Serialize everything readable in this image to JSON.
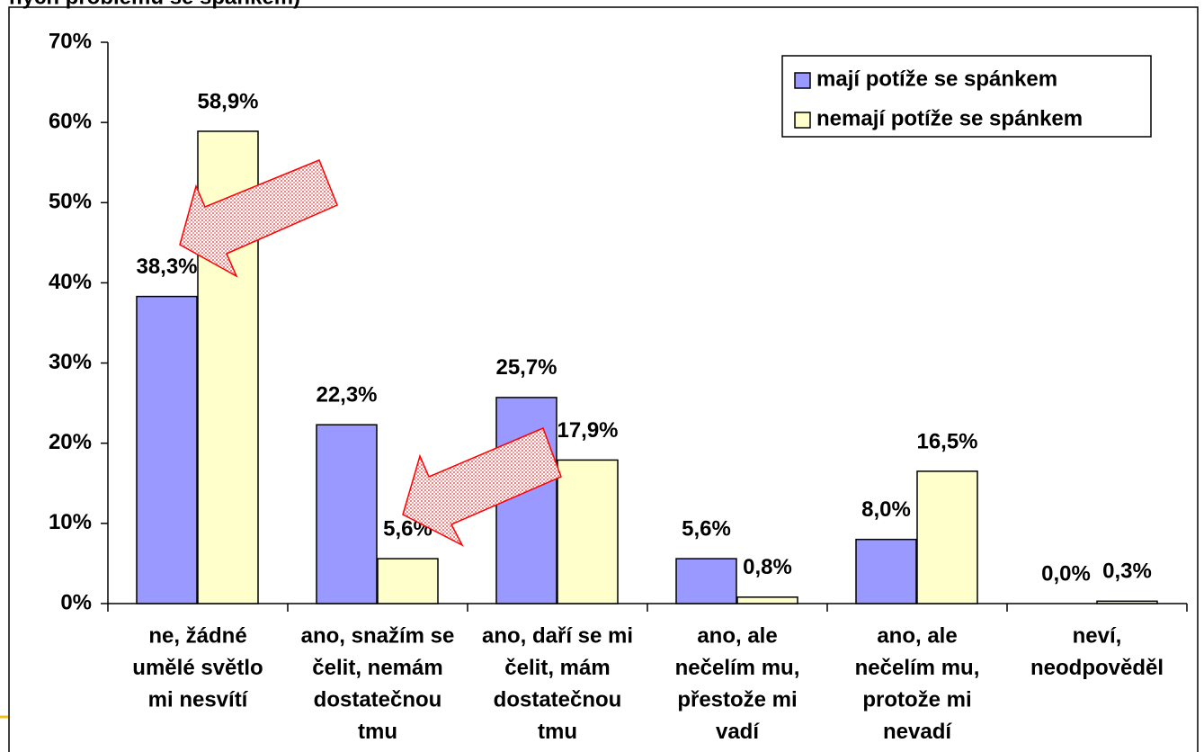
{
  "chart_data": {
    "type": "bar",
    "title": "ných problému se spánkem)",
    "categories": [
      [
        "ne, žádné",
        "umělé světlo",
        "mi nesvítí"
      ],
      [
        "ano, snažím se",
        "čelit, nemám",
        "dostatečnou",
        "tmu"
      ],
      [
        "ano, daří se mi",
        "čelit, mám",
        "dostatečnou",
        "tmu"
      ],
      [
        "ano, ale",
        "nečelím mu,",
        "přestože mi",
        "vadí"
      ],
      [
        "ano, ale",
        "nečelím mu,",
        "protože mi",
        "nevadí"
      ],
      [
        "neví,",
        "neodpověděl"
      ]
    ],
    "series": [
      {
        "name": "mají potíže se spánkem",
        "color": "#9999ff",
        "values": [
          38.3,
          22.3,
          25.7,
          5.6,
          8.0,
          0.0
        ],
        "value_labels": [
          "38,3%",
          "22,3%",
          "25,7%",
          "5,6%",
          "8,0%",
          "0,0%"
        ]
      },
      {
        "name": "nemají potíže se spánkem",
        "color": "#ffffcc",
        "values": [
          58.9,
          5.6,
          17.9,
          0.8,
          16.5,
          0.3
        ],
        "value_labels": [
          "58,9%",
          "5,6%",
          "17,9%",
          "0,8%",
          "16,5%",
          "0,3%"
        ]
      }
    ],
    "ylim": [
      0,
      70
    ],
    "yticks": [
      {
        "value": 0,
        "label": "0%"
      },
      {
        "value": 10,
        "label": "10%"
      },
      {
        "value": 20,
        "label": "20%"
      },
      {
        "value": 30,
        "label": "30%"
      },
      {
        "value": 40,
        "label": "40%"
      },
      {
        "value": 50,
        "label": "50%"
      },
      {
        "value": 60,
        "label": "60%"
      },
      {
        "value": 70,
        "label": "70%"
      }
    ],
    "legend": "upper right"
  }
}
